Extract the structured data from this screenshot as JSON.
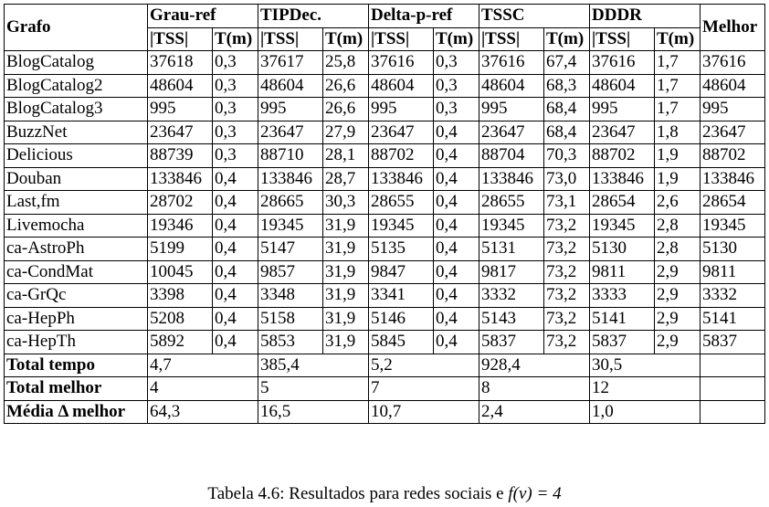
{
  "table": {
    "header": {
      "grafo": "Grafo",
      "methods": [
        "Grau-ref",
        "TIPDec.",
        "Delta-p-ref",
        "TSSC",
        "DDDR"
      ],
      "melhor": "Melhor",
      "sub_tss": "|TSS|",
      "sub_t": "T(m)"
    },
    "rows": [
      {
        "name": "BlogCatalog",
        "vals": [
          "37618",
          "0,3",
          "37617",
          "25,8",
          "37616",
          "0,3",
          "37616",
          "67,4",
          "37616",
          "1,7"
        ],
        "melhor": "37616"
      },
      {
        "name": "BlogCatalog2",
        "vals": [
          "48604",
          "0,3",
          "48604",
          "26,6",
          "48604",
          "0,3",
          "48604",
          "68,3",
          "48604",
          "1,7"
        ],
        "melhor": "48604"
      },
      {
        "name": "BlogCatalog3",
        "vals": [
          "995",
          "0,3",
          "995",
          "26,6",
          "995",
          "0,3",
          "995",
          "68,4",
          "995",
          "1,7"
        ],
        "melhor": "995"
      },
      {
        "name": "BuzzNet",
        "vals": [
          "23647",
          "0,3",
          "23647",
          "27,9",
          "23647",
          "0,4",
          "23647",
          "68,4",
          "23647",
          "1,8"
        ],
        "melhor": "23647"
      },
      {
        "name": "Delicious",
        "vals": [
          "88739",
          "0,3",
          "88710",
          "28,1",
          "88702",
          "0,4",
          "88704",
          "70,3",
          "88702",
          "1,9"
        ],
        "melhor": "88702"
      },
      {
        "name": "Douban",
        "vals": [
          "133846",
          "0,4",
          "133846",
          "28,7",
          "133846",
          "0,4",
          "133846",
          "73,0",
          "133846",
          "1,9"
        ],
        "melhor": "133846"
      },
      {
        "name": "Last,fm",
        "vals": [
          "28702",
          "0,4",
          "28665",
          "30,3",
          "28655",
          "0,4",
          "28655",
          "73,1",
          "28654",
          "2,6"
        ],
        "melhor": "28654"
      },
      {
        "name": "Livemocha",
        "vals": [
          "19346",
          "0,4",
          "19345",
          "31,9",
          "19345",
          "0,4",
          "19345",
          "73,2",
          "19345",
          "2,8"
        ],
        "melhor": "19345"
      },
      {
        "name": "ca-AstroPh",
        "vals": [
          "5199",
          "0,4",
          "5147",
          "31,9",
          "5135",
          "0,4",
          "5131",
          "73,2",
          "5130",
          "2,8"
        ],
        "melhor": "5130"
      },
      {
        "name": "ca-CondMat",
        "vals": [
          "10045",
          "0,4",
          "9857",
          "31,9",
          "9847",
          "0,4",
          "9817",
          "73,2",
          "9811",
          "2,9"
        ],
        "melhor": "9811"
      },
      {
        "name": "ca-GrQc",
        "vals": [
          "3398",
          "0,4",
          "3348",
          "31,9",
          "3341",
          "0,4",
          "3332",
          "73,2",
          "3333",
          "2,9"
        ],
        "melhor": "3332"
      },
      {
        "name": "ca-HepPh",
        "vals": [
          "5208",
          "0,4",
          "5158",
          "31,9",
          "5146",
          "0,4",
          "5143",
          "73,2",
          "5141",
          "2,9"
        ],
        "melhor": "5141"
      },
      {
        "name": "ca-HepTh",
        "vals": [
          "5892",
          "0,4",
          "5853",
          "31,9",
          "5845",
          "0,4",
          "5837",
          "73,2",
          "5837",
          "2,9"
        ],
        "melhor": "5837"
      }
    ],
    "summary": [
      {
        "label": "Total tempo",
        "vals": [
          "4,7",
          "385,4",
          "5,2",
          "928,4",
          "30,5"
        ]
      },
      {
        "label": "Total melhor",
        "vals": [
          "4",
          "5",
          "7",
          "8",
          "12"
        ]
      },
      {
        "label": "Média Δ melhor",
        "vals": [
          "64,3",
          "16,5",
          "10,7",
          "2,4",
          "1,0"
        ]
      }
    ]
  },
  "caption": {
    "prefix": "Tabela 4.6: Resultados para redes sociais e ",
    "formula": "f(v) = 4"
  }
}
